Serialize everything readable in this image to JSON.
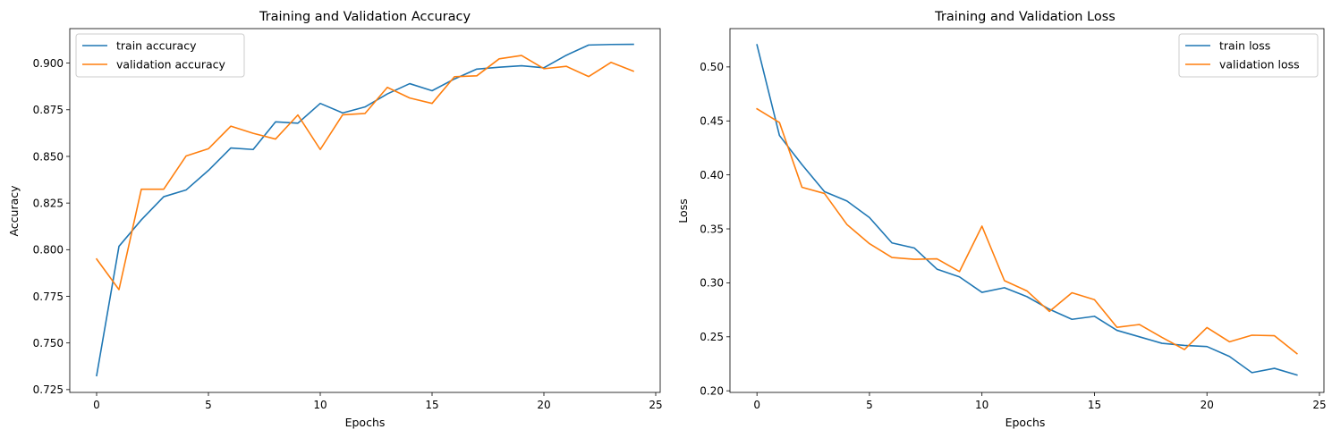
{
  "chart_data": [
    {
      "type": "line",
      "title": "Training and Validation Accuracy",
      "xlabel": "Epochs",
      "ylabel": "Accuracy",
      "xlim": [
        -1.2,
        25.2
      ],
      "ylim": [
        0.7235,
        0.9185
      ],
      "xticks": [
        0,
        5,
        10,
        15,
        20,
        25
      ],
      "yticks": [
        0.725,
        0.75,
        0.775,
        0.8,
        0.825,
        0.85,
        0.875,
        0.9
      ],
      "ytick_labels": [
        "0.725",
        "0.750",
        "0.775",
        "0.800",
        "0.825",
        "0.850",
        "0.875",
        "0.900"
      ],
      "legend_position": "upper-left",
      "grid": false,
      "x": [
        0,
        1,
        2,
        3,
        4,
        5,
        6,
        7,
        8,
        9,
        10,
        11,
        12,
        13,
        14,
        15,
        16,
        17,
        18,
        19,
        20,
        21,
        22,
        23,
        24
      ],
      "series": [
        {
          "name": "train accuracy",
          "color": "#1f77b4",
          "values": [
            0.7325,
            0.8018,
            0.816,
            0.8284,
            0.832,
            0.8425,
            0.8545,
            0.8537,
            0.8685,
            0.8678,
            0.8784,
            0.8733,
            0.8765,
            0.8835,
            0.889,
            0.8852,
            0.8915,
            0.8968,
            0.8978,
            0.8986,
            0.8975,
            0.9042,
            0.9097,
            0.91,
            0.9101
          ]
        },
        {
          "name": "validation accuracy",
          "color": "#ff7f0e",
          "values": [
            0.795,
            0.7786,
            0.8324,
            0.8324,
            0.8502,
            0.8541,
            0.8662,
            0.8624,
            0.8593,
            0.8722,
            0.8537,
            0.8723,
            0.873,
            0.887,
            0.8813,
            0.8784,
            0.8927,
            0.8932,
            0.9023,
            0.9041,
            0.897,
            0.8983,
            0.8928,
            0.9004,
            0.8957
          ]
        }
      ]
    },
    {
      "type": "line",
      "title": "Training and Validation Loss",
      "xlabel": "Epochs",
      "ylabel": "Loss",
      "xlim": [
        -1.2,
        25.2
      ],
      "ylim": [
        0.1985,
        0.5355
      ],
      "xticks": [
        0,
        5,
        10,
        15,
        20,
        25
      ],
      "yticks": [
        0.2,
        0.25,
        0.3,
        0.35,
        0.4,
        0.45,
        0.5
      ],
      "ytick_labels": [
        "0.20",
        "0.25",
        "0.30",
        "0.35",
        "0.40",
        "0.45",
        "0.50"
      ],
      "legend_position": "upper-right",
      "grid": false,
      "x": [
        0,
        1,
        2,
        3,
        4,
        5,
        6,
        7,
        8,
        9,
        10,
        11,
        12,
        13,
        14,
        15,
        16,
        17,
        18,
        19,
        20,
        21,
        22,
        23,
        24
      ],
      "series": [
        {
          "name": "train loss",
          "color": "#1f77b4",
          "values": [
            0.5205,
            0.4365,
            0.4095,
            0.3845,
            0.3758,
            0.3605,
            0.337,
            0.3322,
            0.3127,
            0.3055,
            0.2912,
            0.2955,
            0.2872,
            0.2755,
            0.2662,
            0.269,
            0.256,
            0.25,
            0.244,
            0.242,
            0.241,
            0.2318,
            0.2168,
            0.2208,
            0.2146
          ]
        },
        {
          "name": "validation loss",
          "color": "#ff7f0e",
          "values": [
            0.4612,
            0.4485,
            0.3885,
            0.3828,
            0.354,
            0.3363,
            0.3235,
            0.3218,
            0.3222,
            0.3104,
            0.3525,
            0.302,
            0.2925,
            0.2735,
            0.2908,
            0.2844,
            0.2588,
            0.2614,
            0.2495,
            0.2382,
            0.2586,
            0.2454,
            0.2515,
            0.251,
            0.2344
          ]
        }
      ]
    }
  ]
}
